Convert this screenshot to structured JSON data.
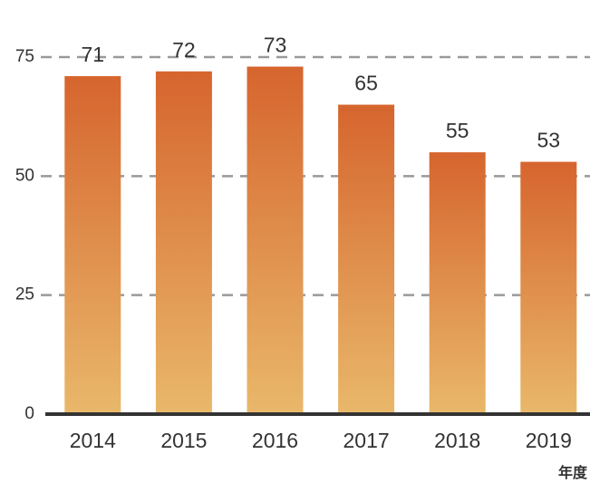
{
  "chart_data": {
    "type": "bar",
    "x_label": "年度",
    "categories": [
      "2014",
      "2015",
      "2016",
      "2017",
      "2018",
      "2019"
    ],
    "values": [
      71,
      72,
      73,
      65,
      55,
      53
    ],
    "color": "#d6652e",
    "color_bottom": "#e9b86a",
    "ylim": [
      0,
      75
    ],
    "yticks": [
      0,
      25,
      50,
      75
    ],
    "grid": true
  }
}
